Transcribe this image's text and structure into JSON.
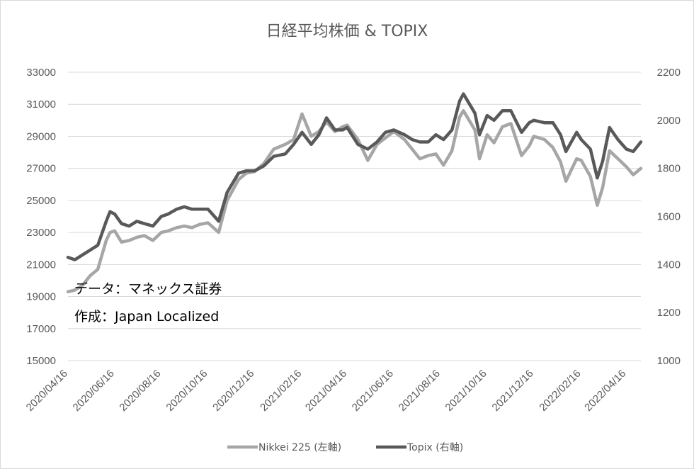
{
  "chart_data": {
    "type": "line",
    "title": "日経平均株価 & TOPIX",
    "x_ticks": [
      "2020/04/16",
      "2020/06/16",
      "2020/08/16",
      "2020/10/16",
      "2020/12/16",
      "2021/02/16",
      "2021/04/16",
      "2021/06/16",
      "2021/08/16",
      "2021/10/16",
      "2021/12/16",
      "2022/02/16",
      "2022/04/16"
    ],
    "y_left": {
      "ticks": [
        15000,
        17000,
        19000,
        21000,
        23000,
        25000,
        27000,
        29000,
        31000,
        33000
      ],
      "range": [
        15000,
        33000
      ]
    },
    "y_right": {
      "ticks": [
        1000,
        1200,
        1400,
        1600,
        1800,
        2000,
        2200
      ],
      "range": [
        1000,
        2200
      ]
    },
    "grid": true,
    "legend_position": "bottom",
    "annotations": [
      "データ：マネックス証券",
      "作成：Japan Localized"
    ],
    "series": [
      {
        "name": "Nikkei 225 (左軸)",
        "axis": "left",
        "color": "#a6a6a6",
        "points": [
          [
            "2020/04/16",
            19300
          ],
          [
            "2020/04/25",
            19400
          ],
          [
            "2020/05/05",
            19700
          ],
          [
            "2020/05/15",
            20300
          ],
          [
            "2020/05/25",
            20700
          ],
          [
            "2020/06/05",
            22500
          ],
          [
            "2020/06/10",
            23000
          ],
          [
            "2020/06/16",
            23100
          ],
          [
            "2020/06/25",
            22400
          ],
          [
            "2020/07/05",
            22500
          ],
          [
            "2020/07/15",
            22700
          ],
          [
            "2020/07/25",
            22800
          ],
          [
            "2020/08/05",
            22500
          ],
          [
            "2020/08/16",
            23000
          ],
          [
            "2020/08/25",
            23100
          ],
          [
            "2020/09/05",
            23300
          ],
          [
            "2020/09/15",
            23400
          ],
          [
            "2020/09/25",
            23300
          ],
          [
            "2020/10/05",
            23500
          ],
          [
            "2020/10/16",
            23600
          ],
          [
            "2020/10/30",
            23000
          ],
          [
            "2020/11/10",
            25000
          ],
          [
            "2020/11/25",
            26300
          ],
          [
            "2020/12/05",
            26700
          ],
          [
            "2020/12/16",
            26800
          ],
          [
            "2020/12/28",
            27300
          ],
          [
            "2021/01/10",
            28200
          ],
          [
            "2021/01/25",
            28500
          ],
          [
            "2021/02/05",
            28800
          ],
          [
            "2021/02/16",
            30400
          ],
          [
            "2021/02/28",
            29000
          ],
          [
            "2021/03/10",
            29300
          ],
          [
            "2021/03/20",
            29900
          ],
          [
            "2021/03/31",
            29300
          ],
          [
            "2021/04/10",
            29600
          ],
          [
            "2021/04/16",
            29700
          ],
          [
            "2021/04/30",
            28800
          ],
          [
            "2021/05/13",
            27500
          ],
          [
            "2021/05/25",
            28500
          ],
          [
            "2021/06/05",
            28900
          ],
          [
            "2021/06/16",
            29300
          ],
          [
            "2021/06/30",
            28800
          ],
          [
            "2021/07/10",
            28200
          ],
          [
            "2021/07/20",
            27600
          ],
          [
            "2021/07/31",
            27800
          ],
          [
            "2021/08/10",
            27900
          ],
          [
            "2021/08/20",
            27200
          ],
          [
            "2021/08/31",
            28100
          ],
          [
            "2021/09/10",
            30200
          ],
          [
            "2021/09/15",
            30600
          ],
          [
            "2021/09/30",
            29400
          ],
          [
            "2021/10/06",
            27600
          ],
          [
            "2021/10/16",
            29100
          ],
          [
            "2021/10/25",
            28600
          ],
          [
            "2021/11/05",
            29600
          ],
          [
            "2021/11/16",
            29800
          ],
          [
            "2021/11/30",
            27800
          ],
          [
            "2021/12/10",
            28400
          ],
          [
            "2021/12/16",
            29000
          ],
          [
            "2021/12/30",
            28800
          ],
          [
            "2022/01/10",
            28300
          ],
          [
            "2022/01/20",
            27400
          ],
          [
            "2022/01/27",
            26200
          ],
          [
            "2022/02/10",
            27600
          ],
          [
            "2022/02/16",
            27500
          ],
          [
            "2022/02/28",
            26500
          ],
          [
            "2022/03/09",
            24700
          ],
          [
            "2022/03/16",
            25800
          ],
          [
            "2022/03/25",
            28100
          ],
          [
            "2022/04/05",
            27600
          ],
          [
            "2022/04/16",
            27100
          ],
          [
            "2022/04/25",
            26600
          ],
          [
            "2022/05/05",
            27000
          ]
        ]
      },
      {
        "name": "Topix (右軸)",
        "axis": "right",
        "color": "#595959",
        "points": [
          [
            "2020/04/16",
            1430
          ],
          [
            "2020/04/25",
            1420
          ],
          [
            "2020/05/05",
            1440
          ],
          [
            "2020/05/15",
            1460
          ],
          [
            "2020/05/25",
            1480
          ],
          [
            "2020/06/05",
            1580
          ],
          [
            "2020/06/10",
            1620
          ],
          [
            "2020/06/16",
            1610
          ],
          [
            "2020/06/25",
            1570
          ],
          [
            "2020/07/05",
            1560
          ],
          [
            "2020/07/15",
            1580
          ],
          [
            "2020/07/25",
            1570
          ],
          [
            "2020/08/05",
            1560
          ],
          [
            "2020/08/16",
            1600
          ],
          [
            "2020/08/25",
            1610
          ],
          [
            "2020/09/05",
            1630
          ],
          [
            "2020/09/15",
            1640
          ],
          [
            "2020/09/25",
            1630
          ],
          [
            "2020/10/05",
            1630
          ],
          [
            "2020/10/16",
            1630
          ],
          [
            "2020/10/30",
            1580
          ],
          [
            "2020/11/10",
            1700
          ],
          [
            "2020/11/25",
            1780
          ],
          [
            "2020/12/05",
            1790
          ],
          [
            "2020/12/16",
            1790
          ],
          [
            "2020/12/28",
            1810
          ],
          [
            "2021/01/10",
            1850
          ],
          [
            "2021/01/25",
            1860
          ],
          [
            "2021/02/05",
            1900
          ],
          [
            "2021/02/16",
            1950
          ],
          [
            "2021/02/28",
            1900
          ],
          [
            "2021/03/10",
            1940
          ],
          [
            "2021/03/20",
            2010
          ],
          [
            "2021/03/31",
            1960
          ],
          [
            "2021/04/10",
            1960
          ],
          [
            "2021/04/16",
            1970
          ],
          [
            "2021/04/30",
            1900
          ],
          [
            "2021/05/13",
            1880
          ],
          [
            "2021/05/25",
            1910
          ],
          [
            "2021/06/05",
            1950
          ],
          [
            "2021/06/16",
            1960
          ],
          [
            "2021/06/30",
            1940
          ],
          [
            "2021/07/10",
            1920
          ],
          [
            "2021/07/20",
            1910
          ],
          [
            "2021/07/31",
            1910
          ],
          [
            "2021/08/10",
            1940
          ],
          [
            "2021/08/20",
            1920
          ],
          [
            "2021/08/31",
            1960
          ],
          [
            "2021/09/10",
            2080
          ],
          [
            "2021/09/15",
            2110
          ],
          [
            "2021/09/30",
            2030
          ],
          [
            "2021/10/06",
            1940
          ],
          [
            "2021/10/16",
            2020
          ],
          [
            "2021/10/25",
            2000
          ],
          [
            "2021/11/05",
            2040
          ],
          [
            "2021/11/16",
            2040
          ],
          [
            "2021/11/30",
            1950
          ],
          [
            "2021/12/10",
            1990
          ],
          [
            "2021/12/16",
            2000
          ],
          [
            "2021/12/30",
            1990
          ],
          [
            "2022/01/10",
            1990
          ],
          [
            "2022/01/20",
            1940
          ],
          [
            "2022/01/27",
            1870
          ],
          [
            "2022/02/10",
            1950
          ],
          [
            "2022/02/16",
            1920
          ],
          [
            "2022/02/28",
            1880
          ],
          [
            "2022/03/09",
            1760
          ],
          [
            "2022/03/16",
            1830
          ],
          [
            "2022/03/25",
            1970
          ],
          [
            "2022/04/05",
            1920
          ],
          [
            "2022/04/16",
            1880
          ],
          [
            "2022/04/25",
            1870
          ],
          [
            "2022/05/05",
            1910
          ]
        ]
      }
    ]
  }
}
